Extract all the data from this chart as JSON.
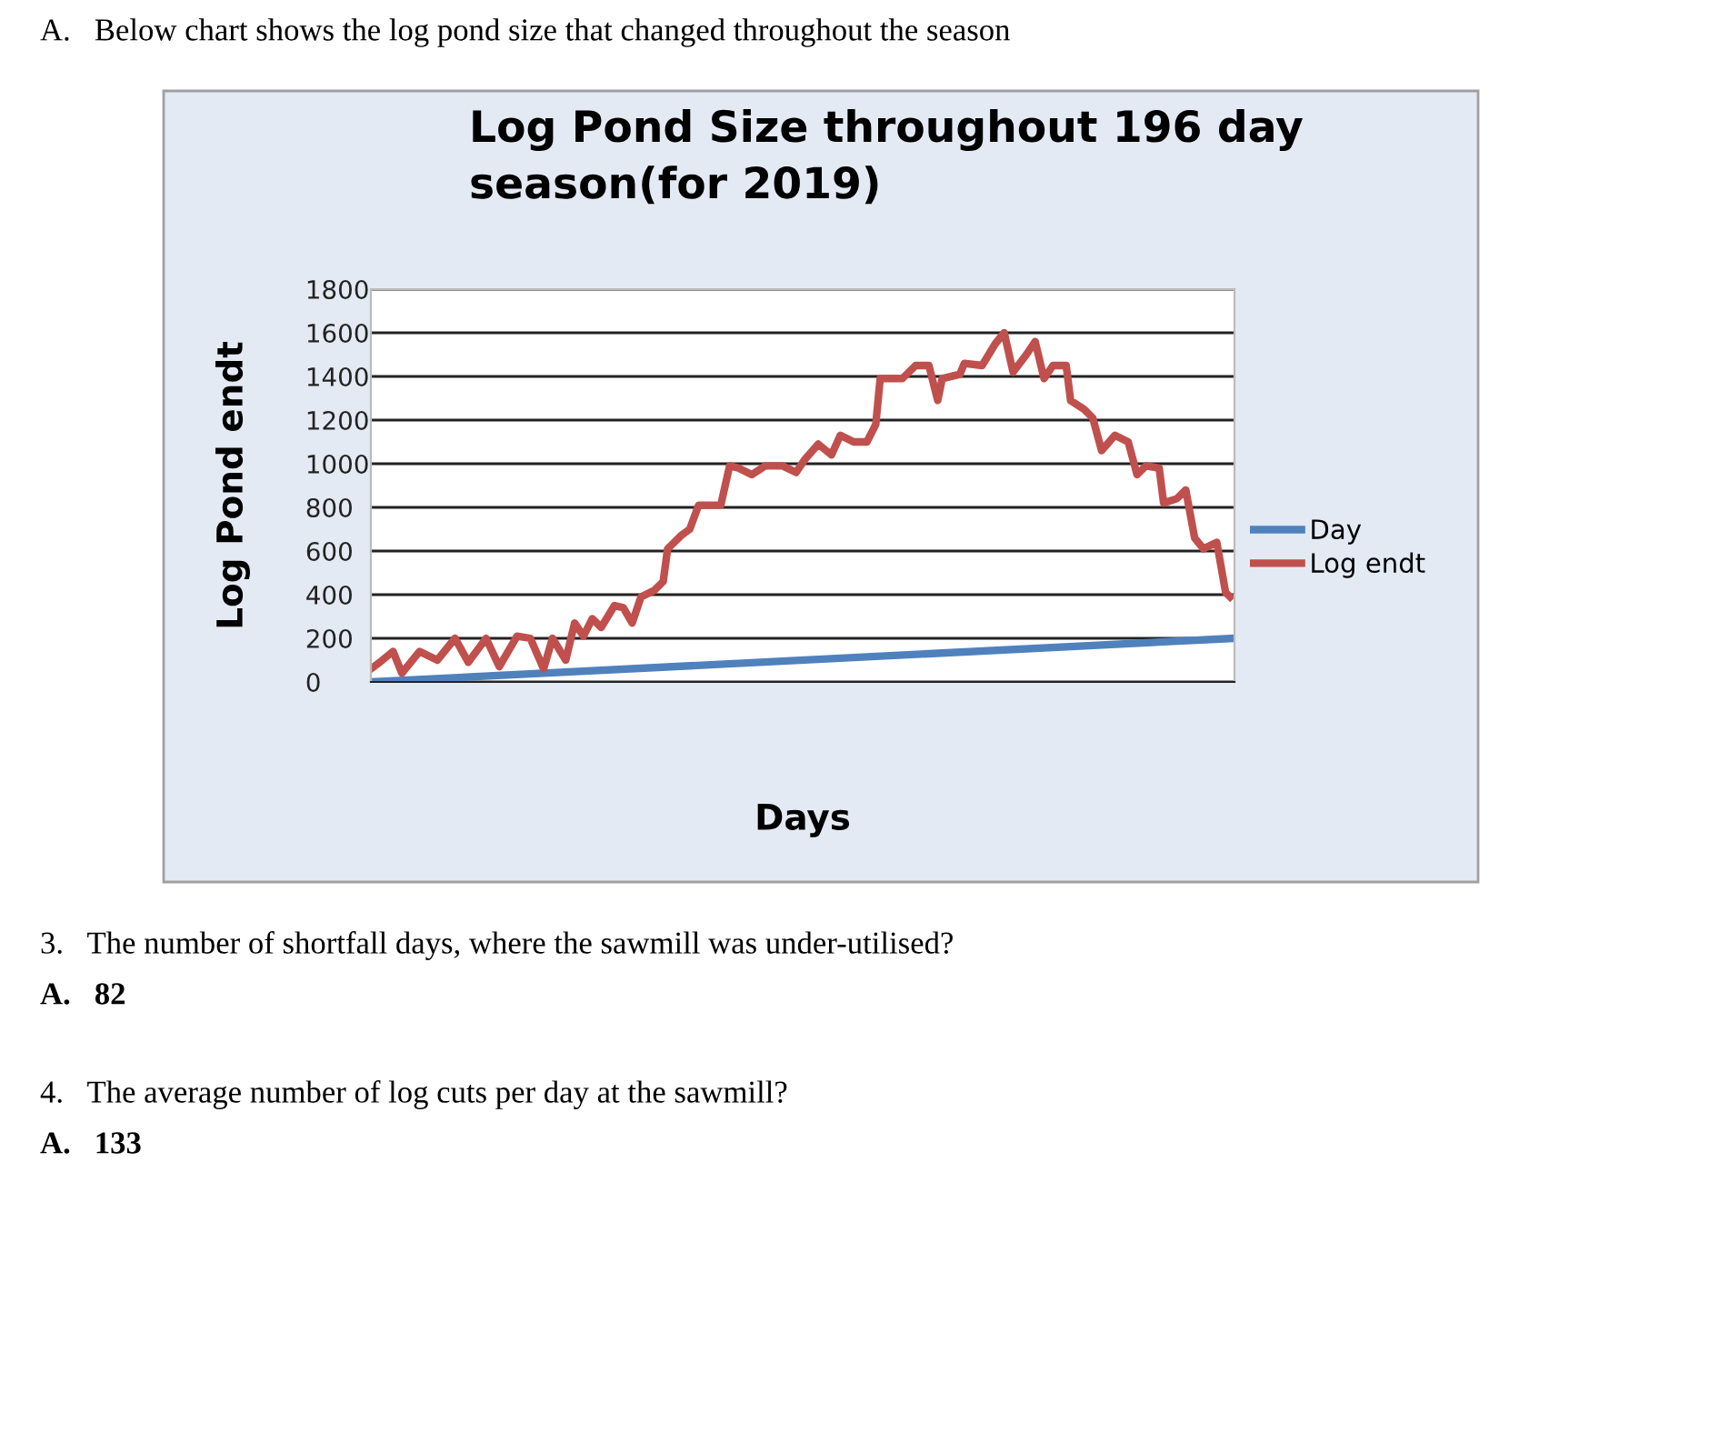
{
  "chart_data": {
    "type": "line",
    "title": "Log Pond Size throughout 196 day\nseason(for 2019)",
    "xlabel": "Days",
    "ylabel": "Log Pond endt",
    "categories": [
      null,
      null,
      null,
      null,
      null,
      null,
      null,
      null,
      null,
      null,
      null,
      null,
      null,
      null,
      null,
      null,
      null,
      null,
      null,
      null,
      null,
      null,
      null,
      null,
      null,
      null,
      null,
      null,
      null,
      null,
      null,
      null,
      null,
      null,
      null,
      null,
      null,
      null,
      null,
      null,
      null,
      null,
      null,
      null,
      null,
      null,
      null,
      null,
      null,
      null,
      null,
      null,
      null,
      null,
      null,
      null,
      null,
      null,
      null,
      null,
      null,
      null,
      null,
      null,
      null,
      null,
      null,
      null,
      null,
      null,
      null,
      null,
      null,
      null,
      null,
      null,
      null,
      null,
      null,
      null,
      null,
      null,
      null,
      null,
      null,
      null,
      null,
      null,
      null,
      null,
      null,
      null,
      null,
      null,
      null,
      null,
      null,
      null,
      null,
      null,
      null,
      null,
      null,
      null,
      null,
      null,
      null,
      null,
      null,
      null,
      null,
      null,
      null,
      null,
      null,
      null,
      null,
      null,
      null,
      null,
      null,
      null,
      null,
      null,
      null,
      null,
      null,
      null,
      null,
      null,
      null,
      null,
      null,
      null,
      null,
      null,
      null,
      null,
      null,
      null,
      null,
      null,
      null,
      null,
      null,
      null,
      null,
      null,
      null,
      null,
      null,
      null,
      null,
      null,
      null,
      null,
      null,
      null,
      null,
      null,
      null,
      null,
      null,
      null,
      null,
      null,
      null,
      null,
      null,
      null,
      null,
      null,
      null,
      null,
      null,
      null,
      null,
      null,
      null,
      null,
      null,
      null,
      null,
      null,
      null,
      null,
      null,
      null,
      null,
      null,
      null,
      null,
      null,
      null,
      null,
      null
    ],
    "series": [
      {
        "name": "Day",
        "color": "#4f81bd",
        "values": [
          0,
          null,
          null,
          null,
          null,
          null,
          null,
          null,
          null,
          null,
          null,
          null,
          null,
          null,
          null,
          null,
          null,
          null,
          null,
          null,
          null,
          null,
          null,
          null,
          null,
          null,
          null,
          null,
          null,
          null,
          null,
          null,
          null,
          null,
          null,
          null,
          null,
          null,
          null,
          null,
          null,
          null,
          null,
          null,
          null,
          null,
          null,
          null,
          null,
          null,
          null,
          null,
          null,
          null,
          null,
          null,
          null,
          null,
          null,
          null,
          null,
          null,
          null,
          null,
          null,
          null,
          null,
          null,
          null,
          null,
          null,
          null,
          null,
          null,
          null,
          null,
          null,
          null,
          null,
          null,
          null,
          null,
          null,
          null,
          null,
          null,
          null,
          null,
          null,
          null,
          null,
          null,
          null,
          null,
          null,
          null,
          null,
          null,
          null,
          null,
          null,
          null,
          null,
          null,
          null,
          null,
          null,
          null,
          null,
          null,
          null,
          null,
          null,
          null,
          null,
          null,
          null,
          null,
          null,
          null,
          null,
          null,
          null,
          null,
          null,
          null,
          null,
          null,
          null,
          null,
          null,
          null,
          null,
          null,
          null,
          null,
          null,
          null,
          null,
          null,
          null,
          null,
          null,
          null,
          null,
          null,
          null,
          null,
          null,
          null,
          null,
          null,
          null,
          null,
          null,
          null,
          null,
          null,
          null,
          null,
          null,
          null,
          null,
          null,
          null,
          null,
          null,
          null,
          null,
          null,
          null,
          null,
          null,
          null,
          null,
          null,
          null,
          null,
          null,
          null,
          null,
          null,
          null,
          null,
          null,
          null,
          null,
          null,
          null,
          null,
          null,
          null,
          null,
          null,
          null,
          200
        ]
      },
      {
        "name": "Log endt",
        "color": "#c0504d",
        "values": [
          60,
          null,
          90,
          null,
          null,
          140,
          null,
          40,
          null,
          null,
          null,
          140,
          null,
          null,
          null,
          100,
          null,
          null,
          null,
          200,
          null,
          null,
          90,
          null,
          null,
          null,
          200,
          null,
          null,
          70,
          null,
          null,
          null,
          210,
          null,
          null,
          200,
          null,
          null,
          60,
          null,
          200,
          null,
          null,
          100,
          null,
          270,
          null,
          210,
          null,
          290,
          null,
          250,
          null,
          null,
          350,
          null,
          340,
          null,
          270,
          null,
          390,
          null,
          null,
          420,
          null,
          460,
          610,
          null,
          null,
          670,
          null,
          700,
          null,
          810,
          null,
          null,
          null,
          null,
          810,
          null,
          990,
          null,
          980,
          null,
          null,
          950,
          null,
          null,
          990,
          null,
          null,
          null,
          990,
          null,
          null,
          960,
          null,
          1020,
          null,
          null,
          1090,
          null,
          null,
          1040,
          null,
          1130,
          null,
          null,
          1100,
          null,
          null,
          1100,
          null,
          1180,
          1390,
          null,
          null,
          null,
          null,
          1390,
          null,
          null,
          1450,
          null,
          null,
          1450,
          null,
          1290,
          1390,
          null,
          null,
          null,
          1410,
          1460,
          null,
          null,
          null,
          1450,
          null,
          null,
          1550,
          null,
          1600,
          null,
          1420,
          null,
          null,
          1500,
          null,
          1560,
          null,
          1390,
          null,
          1450,
          null,
          null,
          1450,
          1290,
          null,
          null,
          1250,
          null,
          1210,
          null,
          1060,
          null,
          null,
          1130,
          null,
          null,
          1100,
          null,
          950,
          null,
          990,
          null,
          null,
          980,
          820,
          null,
          null,
          840,
          null,
          880,
          null,
          660,
          null,
          610,
          null,
          null,
          640,
          null,
          410,
          390,
          null
        ]
      }
    ],
    "ylim": [
      0,
      1800
    ],
    "yticks": [
      0,
      200,
      400,
      600,
      800,
      1000,
      1200,
      1400,
      1600,
      1800
    ],
    "grid": "y",
    "legend": "right",
    "tick_labels": "y",
    "marker": "none",
    "line_style": "solid",
    "annotations": [
      "A.   Below chart shows the log pond size that changed throughout the season",
      "3.   The number of shortfall days, where the sawmill was under-utilised?",
      "A.   82",
      "4.   The average number of log cuts per day at the sawmill?",
      "A.   133"
    ]
  }
}
